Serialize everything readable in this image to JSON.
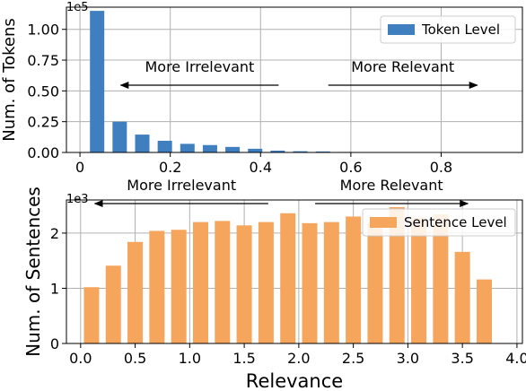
{
  "chart_data": [
    {
      "type": "bar",
      "ylabel": "Num. of Tokens",
      "xlabel": "",
      "exponent_label": "1e5",
      "xlim": [
        -0.03,
        0.98
      ],
      "ylim": [
        0,
        1.18
      ],
      "x_ticks": [
        0.0,
        0.2,
        0.4,
        0.6,
        0.8
      ],
      "x_tick_labels": [
        "0",
        "0.2",
        "0.4",
        "0.6",
        "0.8"
      ],
      "y_ticks": [
        0,
        0.25,
        0.5,
        0.75,
        1.0
      ],
      "y_tick_labels": [
        "0.00",
        "0.25",
        "0.50",
        "0.75",
        "1.00"
      ],
      "grid": true,
      "legend_position": "top-right",
      "series": [
        {
          "name": "Token Level",
          "color": "#3f7fbf",
          "x": [
            0.038,
            0.088,
            0.138,
            0.188,
            0.238,
            0.288,
            0.338,
            0.388,
            0.438,
            0.488,
            0.538,
            0.588
          ],
          "values": [
            1.15,
            0.25,
            0.145,
            0.095,
            0.07,
            0.06,
            0.045,
            0.03,
            0.015,
            0.01,
            0.008,
            0.004
          ]
        }
      ],
      "annotations": [
        {
          "text": "More Irrelevant",
          "direction": "left",
          "from_x": 0.44,
          "to_x": 0.09
        },
        {
          "text": "More Relevant",
          "direction": "right",
          "from_x": 0.55,
          "to_x": 0.88
        }
      ]
    },
    {
      "type": "bar",
      "ylabel": "Num. of Sentences",
      "xlabel": "Relevance",
      "exponent_label": "1e3",
      "xlim": [
        -0.13,
        4.05
      ],
      "ylim": [
        0,
        2.6
      ],
      "x_ticks": [
        0.0,
        0.5,
        1.0,
        1.5,
        2.0,
        2.5,
        3.0,
        3.5,
        4.0
      ],
      "x_tick_labels": [
        "0.0",
        "0.5",
        "1.0",
        "1.5",
        "2.0",
        "2.5",
        "3.0",
        "3.5",
        "4.0"
      ],
      "y_ticks": [
        0,
        1,
        2
      ],
      "y_tick_labels": [
        "0",
        "1",
        "2"
      ],
      "grid": true,
      "legend_position": "top-right",
      "series": [
        {
          "name": "Sentence Level",
          "color": "#f5a55c",
          "x": [
            0.1,
            0.3,
            0.5,
            0.7,
            0.9,
            1.1,
            1.3,
            1.5,
            1.7,
            1.9,
            2.1,
            2.3,
            2.5,
            2.7,
            2.9,
            3.1,
            3.3,
            3.5,
            3.7
          ],
          "values": [
            1.02,
            1.41,
            1.84,
            2.04,
            2.06,
            2.2,
            2.22,
            2.14,
            2.2,
            2.36,
            2.18,
            2.2,
            2.3,
            2.2,
            2.47,
            2.28,
            2.34,
            1.66,
            1.16
          ]
        }
      ],
      "annotations": [
        {
          "text": "More Irrelevant",
          "direction": "left",
          "from_x": 1.72,
          "to_x": 0.13
        },
        {
          "text": "More Relevant",
          "direction": "right",
          "from_x": 2.15,
          "to_x": 3.55
        }
      ]
    }
  ]
}
